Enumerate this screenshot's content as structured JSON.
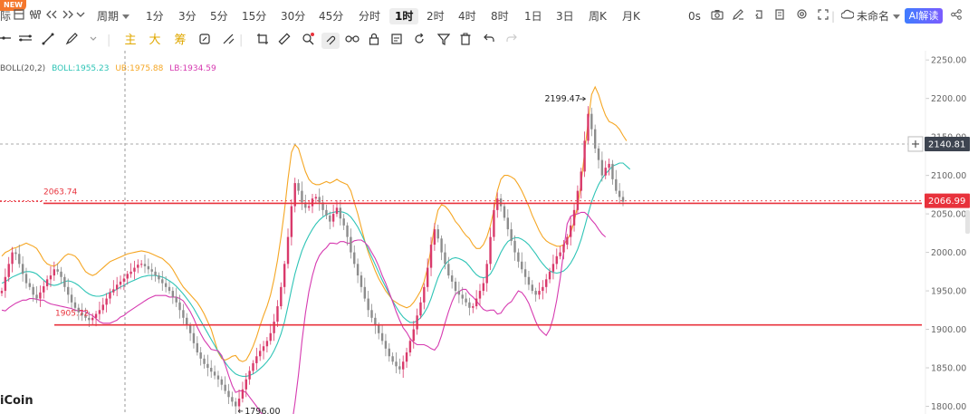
{
  "toolbar": {
    "new_badge": "NEW",
    "first_label": "际",
    "period_label": "周期",
    "intervals": [
      "1分",
      "3分",
      "5分",
      "15分",
      "30分",
      "45分",
      "分时",
      "1时",
      "2时",
      "4时",
      "8时",
      "1日",
      "3日",
      "周K",
      "月K"
    ],
    "active_interval": "1时",
    "time_label": "0s",
    "layout_name": "未命名",
    "ai_label": "AI解读"
  },
  "toolbar2": {
    "main_label": "主",
    "big_label": "大",
    "chips_label": "筹"
  },
  "legend": {
    "name": "BOLL(20,2)",
    "boll": "BOLL:1955.23",
    "ub": "UB:1975.88",
    "lb": "LB:1934.59"
  },
  "colors": {
    "up": "#d93a6b",
    "down": "#8c8c8c",
    "mid": "#2ec4b6",
    "upper": "#f5a623",
    "lower": "#d63ab0",
    "hline": "#e8323c"
  },
  "chart_data": {
    "type": "candlestick",
    "y_ticks": [
      2250,
      2200,
      2150,
      2100,
      2050,
      2000,
      1950,
      1900,
      1850,
      1800
    ],
    "y_tick_labels": [
      "2250.00",
      "2200.00",
      "2150.00",
      "2100.00",
      "2050.00",
      "2000.00",
      "1950.00",
      "1900.00",
      "1850.00",
      "1800.00"
    ],
    "ylim": [
      1790,
      2262
    ],
    "price_labels": {
      "current": "2066.99",
      "crosshair": "2140.81",
      "resistance": "2063.74",
      "support": "1905.72",
      "high": "2199.47",
      "low": "1796.00"
    },
    "values": {
      "current": 2066.99,
      "crosshair": 2140.81,
      "resistance": 2063.74,
      "support": 1905.72,
      "high": 2199.47,
      "low": 1796.0
    },
    "close_series": [
      1950,
      1968,
      1985,
      2000,
      1998,
      1985,
      1972,
      1960,
      1955,
      1945,
      1940,
      1948,
      1956,
      1965,
      1970,
      1978,
      1975,
      1968,
      1955,
      1945,
      1935,
      1928,
      1922,
      1918,
      1915,
      1912,
      1915,
      1920,
      1925,
      1932,
      1940,
      1948,
      1952,
      1958,
      1962,
      1966,
      1972,
      1975,
      1980,
      1984,
      1985,
      1982,
      1978,
      1975,
      1970,
      1965,
      1960,
      1955,
      1950,
      1942,
      1935,
      1925,
      1915,
      1905,
      1895,
      1882,
      1870,
      1862,
      1855,
      1850,
      1845,
      1840,
      1835,
      1828,
      1820,
      1812,
      1806,
      1800,
      1810,
      1822,
      1835,
      1846,
      1856,
      1865,
      1872,
      1878,
      1885,
      1895,
      1910,
      1930,
      1955,
      1985,
      2020,
      2060,
      2090,
      2080,
      2065,
      2058,
      2060,
      2070,
      2072,
      2065,
      2055,
      2048,
      2040,
      2050,
      2058,
      2044,
      2035,
      2020,
      2000,
      1985,
      1970,
      1955,
      1940,
      1925,
      1915,
      1905,
      1895,
      1885,
      1875,
      1865,
      1858,
      1852,
      1848,
      1858,
      1870,
      1885,
      1900,
      1918,
      1935,
      1955,
      1980,
      2010,
      2030,
      2018,
      2000,
      1985,
      1970,
      1962,
      1950,
      1945,
      1940,
      1935,
      1928,
      1930,
      1940,
      1950,
      1960,
      1985,
      2020,
      2055,
      2070,
      2060,
      2045,
      2030,
      2015,
      2000,
      1988,
      1978,
      1968,
      1958,
      1950,
      1945,
      1950,
      1955,
      1965,
      1975,
      1985,
      1995,
      2000,
      2010,
      2020,
      2035,
      2055,
      2080,
      2105,
      2145,
      2180,
      2160,
      2135,
      2120,
      2100,
      2110,
      2115,
      2095,
      2080,
      2072,
      2066
    ],
    "boll_upper": [
      1995,
      2000,
      2002,
      2005,
      2006,
      2008,
      2010,
      2012,
      2010,
      2008,
      2005,
      1998,
      1990,
      1985,
      1983,
      1982,
      1985,
      1990,
      1995,
      1998,
      1997,
      1995,
      1990,
      1982,
      1975,
      1972,
      1970,
      1972,
      1976,
      1980,
      1984,
      1988,
      1990,
      1992,
      1994,
      1996,
      1998,
      1999,
      2000,
      2001,
      2002,
      2001,
      2000,
      1998,
      1996,
      1994,
      1992,
      1988,
      1984,
      1978,
      1970,
      1962,
      1955,
      1950,
      1945,
      1940,
      1935,
      1928,
      1920,
      1910,
      1900,
      1885,
      1870,
      1862,
      1860,
      1862,
      1865,
      1866,
      1860,
      1858,
      1860,
      1868,
      1878,
      1890,
      1905,
      1918,
      1930,
      1945,
      1965,
      1990,
      2020,
      2055,
      2095,
      2130,
      2140,
      2135,
      2120,
      2105,
      2095,
      2090,
      2088,
      2088,
      2090,
      2092,
      2090,
      2092,
      2095,
      2092,
      2090,
      2088,
      2080,
      2065,
      2050,
      2032,
      2015,
      2000,
      1988,
      1976,
      1966,
      1958,
      1950,
      1944,
      1938,
      1935,
      1932,
      1930,
      1928,
      1930,
      1935,
      1942,
      1950,
      1962,
      1980,
      2005,
      2035,
      2055,
      2062,
      2060,
      2055,
      2048,
      2040,
      2035,
      2028,
      2022,
      2018,
      2010,
      2005,
      2005,
      2010,
      2020,
      2035,
      2055,
      2080,
      2095,
      2100,
      2100,
      2098,
      2095,
      2088,
      2080,
      2070,
      2060,
      2048,
      2038,
      2028,
      2020,
      2015,
      2012,
      2010,
      2008,
      2008,
      2010,
      2016,
      2025,
      2040,
      2060,
      2090,
      2130,
      2170,
      2205,
      2215,
      2205,
      2190,
      2178,
      2170,
      2168,
      2165,
      2160,
      2152,
      2145
    ],
    "boll_mid": [
      1960,
      1962,
      1965,
      1968,
      1970,
      1972,
      1974,
      1975,
      1975,
      1974,
      1972,
      1968,
      1964,
      1960,
      1958,
      1957,
      1958,
      1960,
      1962,
      1963,
      1962,
      1960,
      1957,
      1953,
      1949,
      1946,
      1944,
      1943,
      1943,
      1944,
      1946,
      1948,
      1950,
      1952,
      1955,
      1957,
      1960,
      1962,
      1964,
      1966,
      1968,
      1969,
      1970,
      1970,
      1970,
      1969,
      1968,
      1966,
      1963,
      1960,
      1956,
      1951,
      1946,
      1940,
      1934,
      1927,
      1919,
      1911,
      1903,
      1895,
      1887,
      1879,
      1871,
      1864,
      1857,
      1851,
      1846,
      1842,
      1840,
      1839,
      1839,
      1840,
      1842,
      1845,
      1849,
      1853,
      1858,
      1864,
      1872,
      1882,
      1894,
      1910,
      1930,
      1952,
      1972,
      1988,
      2002,
      2013,
      2022,
      2030,
      2037,
      2042,
      2046,
      2049,
      2051,
      2052,
      2053,
      2053,
      2052,
      2050,
      2046,
      2040,
      2033,
      2024,
      2014,
      2004,
      1994,
      1984,
      1974,
      1964,
      1955,
      1946,
      1937,
      1929,
      1922,
      1916,
      1912,
      1909,
      1909,
      1911,
      1915,
      1921,
      1929,
      1940,
      1954,
      1967,
      1977,
      1984,
      1989,
      1992,
      1993,
      1992,
      1990,
      1987,
      1982,
      1976,
      1971,
      1968,
      1967,
      1968,
      1972,
      1980,
      1990,
      2000,
      2008,
      2014,
      2017,
      2019,
      2019,
      2017,
      2014,
      2010,
      2004,
      1998,
      1991,
      1985,
      1980,
      1976,
      1974,
      1973,
      1974,
      1976,
      1980,
      1986,
      1994,
      2004,
      2017,
      2033,
      2050,
      2066,
      2078,
      2088,
      2096,
      2102,
      2107,
      2112,
      2114,
      2116,
      2116,
      2112,
      2108
    ],
    "boll_lower": [
      1925,
      1924,
      1928,
      1931,
      1934,
      1936,
      1938,
      1938,
      1940,
      1940,
      1939,
      1938,
      1938,
      1935,
      1933,
      1932,
      1931,
      1930,
      1929,
      1928,
      1927,
      1925,
      1924,
      1924,
      1923,
      1920,
      1918,
      1914,
      1910,
      1908,
      1908,
      1908,
      1910,
      1912,
      1916,
      1918,
      1922,
      1925,
      1928,
      1931,
      1934,
      1937,
      1940,
      1942,
      1944,
      1944,
      1944,
      1944,
      1942,
      1942,
      1942,
      1940,
      1937,
      1930,
      1923,
      1914,
      1903,
      1894,
      1886,
      1880,
      1874,
      1873,
      1872,
      1866,
      1854,
      1840,
      1827,
      1818,
      1820,
      1820,
      1818,
      1812,
      1806,
      1800,
      1793,
      1788,
      1786,
      1783,
      1779,
      1774,
      1768,
      1765,
      1765,
      1774,
      1804,
      1841,
      1884,
      1921,
      1949,
      1970,
      1986,
      1996,
      2002,
      2006,
      2012,
      2012,
      2011,
      2014,
      2014,
      2012,
      2012,
      2015,
      2016,
      2016,
      2013,
      2008,
      2000,
      1992,
      1982,
      1970,
      1960,
      1948,
      1936,
      1923,
      1912,
      1902,
      1896,
      1888,
      1883,
      1880,
      1880,
      1880,
      1878,
      1875,
      1873,
      1879,
      1892,
      1908,
      1923,
      1936,
      1946,
      1949,
      1952,
      1952,
      1946,
      1942,
      1937,
      1931,
      1926,
      1924,
      1925,
      1925,
      1920,
      1921,
      1928,
      1933,
      1936,
      1943,
      1950,
      1948,
      1942,
      1934,
      1922,
      1910,
      1901,
      1896,
      1892,
      1900,
      1915,
      1938,
      1966,
      2002,
      2037,
      2047,
      2049,
      2050,
      2052,
      2052,
      2048,
      2042,
      2037,
      2030,
      2024,
      2020
    ]
  }
}
